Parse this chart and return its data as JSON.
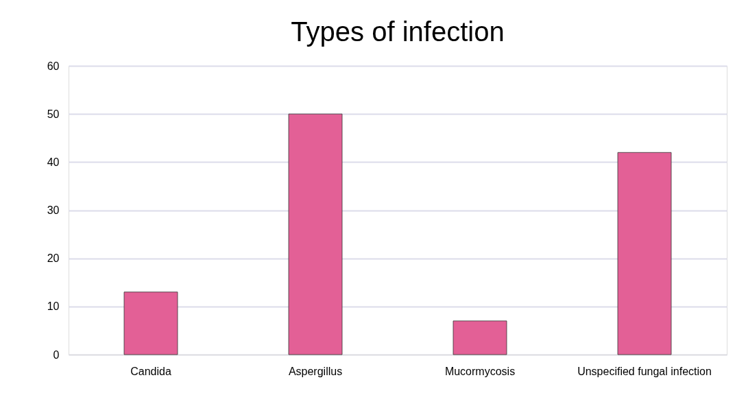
{
  "chart_data": {
    "type": "bar",
    "title": "Types of infection",
    "categories": [
      "Candida",
      "Aspergillus",
      "Mucormycosis",
      "Unspecified fungal infection"
    ],
    "values": [
      13,
      50,
      7,
      42
    ],
    "color": "#e36096",
    "ylim": [
      0,
      60
    ],
    "yticks": [
      0,
      10,
      20,
      30,
      40,
      50,
      60
    ],
    "grid": "y"
  }
}
